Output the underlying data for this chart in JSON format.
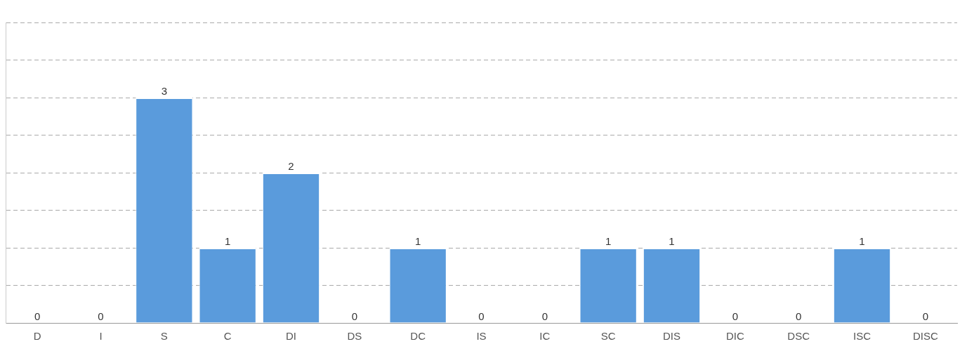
{
  "chart_data": {
    "type": "bar",
    "categories": [
      "D",
      "I",
      "S",
      "C",
      "DI",
      "DS",
      "DC",
      "IS",
      "IC",
      "SC",
      "DIS",
      "DIC",
      "DSC",
      "ISC",
      "DISC"
    ],
    "values": [
      0,
      0,
      3,
      1,
      2,
      0,
      1,
      0,
      0,
      1,
      1,
      0,
      0,
      1,
      0
    ],
    "color": "#5a9bdc",
    "grid": "y",
    "line_style": "dashed",
    "tick_labels": "x",
    "data_labels": true,
    "legend": false
  }
}
